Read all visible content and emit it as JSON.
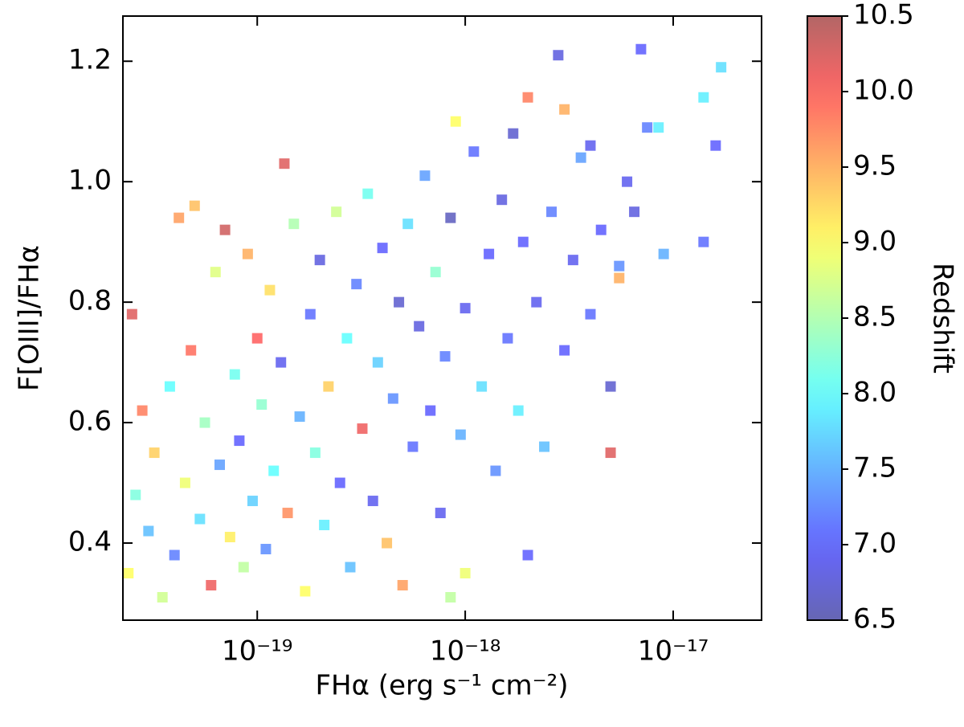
{
  "chart_data": {
    "type": "scatter",
    "x_label": "FHα (erg s⁻¹ cm⁻²)",
    "y_label": "F[OIII]/FHα",
    "colorbar_label": "Redshift",
    "xscale": "log",
    "xlim": [
      2.26e-20,
      2.66e-17
    ],
    "xticks": [
      {
        "value": 1e-19,
        "label": "10⁻¹⁹"
      },
      {
        "value": 1e-18,
        "label": "10⁻¹⁸"
      },
      {
        "value": 1e-17,
        "label": "10⁻¹⁷"
      }
    ],
    "ylim": [
      0.272,
      1.275
    ],
    "yticks": [
      0.4,
      0.6,
      0.8,
      {
        "value": 1,
        "label": "1.0"
      },
      1.2
    ],
    "colormap": "jet",
    "clim": [
      6.5,
      10.5
    ],
    "cticks": [
      6.5,
      {
        "value": 7,
        "label": "7.0"
      },
      7.5,
      {
        "value": 8,
        "label": "8.0"
      },
      8.5,
      {
        "value": 9,
        "label": "9.0"
      },
      9.5,
      {
        "value": 10,
        "label": "10.0"
      },
      10.5
    ],
    "x": [
      2.4e-20,
      2.6e-20,
      2.8e-20,
      3e-20,
      3.2e-20,
      3.5e-20,
      2.5e-20,
      3.8e-20,
      4e-20,
      4.2e-20,
      4.5e-20,
      4.8e-20,
      5e-20,
      5.3e-20,
      5.6e-20,
      6e-20,
      6.3e-20,
      6.6e-20,
      7e-20,
      7.4e-20,
      7.8e-20,
      8.2e-20,
      8.6e-20,
      9e-20,
      9.5e-20,
      1e-19,
      1.05e-19,
      1.1e-19,
      1.15e-19,
      1.2e-19,
      1.3e-19,
      1.35e-19,
      1.4e-19,
      1.5e-19,
      1.6e-19,
      1.7e-19,
      1.8e-19,
      1.9e-19,
      2e-19,
      2.1e-19,
      2.2e-19,
      2.4e-19,
      2.5e-19,
      2.7e-19,
      2.8e-19,
      3e-19,
      3.2e-19,
      3.4e-19,
      3.6e-19,
      3.8e-19,
      4e-19,
      4.2e-19,
      4.5e-19,
      4.8e-19,
      5e-19,
      5.3e-19,
      5.6e-19,
      6e-19,
      6.4e-19,
      6.8e-19,
      7.2e-19,
      7.6e-19,
      8e-19,
      8.5e-19,
      9e-19,
      9.5e-19,
      1e-18,
      1.1e-18,
      1.2e-18,
      1.3e-18,
      1.4e-18,
      1.5e-18,
      1.6e-18,
      1.7e-18,
      1.8e-18,
      1.9e-18,
      2e-18,
      2.2e-18,
      2.4e-18,
      2.6e-18,
      2.8e-18,
      3e-18,
      3e-18,
      3.3e-18,
      3.6e-18,
      4e-18,
      4e-18,
      4.5e-18,
      5e-18,
      5e-18,
      5.5e-18,
      6e-18,
      6.5e-18,
      7e-18,
      7.5e-18,
      8.5e-18,
      9e-18,
      1.4e-17,
      1.4e-17,
      1.6e-17,
      1.7e-17,
      5.5e-18,
      1e-18,
      8.5e-19,
      2e-18
    ],
    "y": [
      0.35,
      0.48,
      0.62,
      0.42,
      0.55,
      0.31,
      0.78,
      0.66,
      0.38,
      0.94,
      0.5,
      0.72,
      0.96,
      0.44,
      0.6,
      0.33,
      0.85,
      0.53,
      0.92,
      0.41,
      0.68,
      0.57,
      0.36,
      0.88,
      0.47,
      0.74,
      0.63,
      0.39,
      0.82,
      0.52,
      0.7,
      1.03,
      0.45,
      0.93,
      0.61,
      0.32,
      0.78,
      0.55,
      0.87,
      0.43,
      0.66,
      0.95,
      0.5,
      0.74,
      0.36,
      0.83,
      0.59,
      0.98,
      0.47,
      0.7,
      0.89,
      0.4,
      0.64,
      0.8,
      0.33,
      0.93,
      0.56,
      0.76,
      1.01,
      0.62,
      0.85,
      0.45,
      0.71,
      0.94,
      1.1,
      0.58,
      0.79,
      1.05,
      0.66,
      0.88,
      0.52,
      0.97,
      0.74,
      1.08,
      0.62,
      0.9,
      1.14,
      0.8,
      0.56,
      0.95,
      1.21,
      0.72,
      1.12,
      0.87,
      1.04,
      0.78,
      1.06,
      0.92,
      0.55,
      0.66,
      0.86,
      1.0,
      0.95,
      1.22,
      1.09,
      1.09,
      0.88,
      0.9,
      1.14,
      1.06,
      1.19,
      0.84,
      0.35,
      0.31,
      0.38
    ],
    "z": [
      9.0,
      8.2,
      9.8,
      7.6,
      9.3,
      8.7,
      10.2,
      8.0,
      7.2,
      9.6,
      8.9,
      9.9,
      9.4,
      7.8,
      8.4,
      10.1,
      8.8,
      7.4,
      10.3,
      9.1,
      8.1,
      7.0,
      8.6,
      9.5,
      7.7,
      10.0,
      8.3,
      7.3,
      9.2,
      8.0,
      6.9,
      10.2,
      9.7,
      8.5,
      7.5,
      9.0,
      7.1,
      8.2,
      6.8,
      7.9,
      9.3,
      8.7,
      7.0,
      8.0,
      7.6,
      7.2,
      10.1,
      8.1,
      6.9,
      7.7,
      7.0,
      9.4,
      7.3,
      6.7,
      9.6,
      7.8,
      7.1,
      6.8,
      7.4,
      7.0,
      8.3,
      6.9,
      7.2,
      6.6,
      9.0,
      7.5,
      6.9,
      7.1,
      7.8,
      7.0,
      7.3,
      6.8,
      7.1,
      6.7,
      7.9,
      7.0,
      9.8,
      6.9,
      7.6,
      7.2,
      6.8,
      7.0,
      9.5,
      6.9,
      7.4,
      7.1,
      6.9,
      7.0,
      10.2,
      6.7,
      7.3,
      6.9,
      6.8,
      7.0,
      7.2,
      7.9,
      7.5,
      7.1,
      7.9,
      7.0,
      7.8,
      9.5,
      8.9,
      8.6,
      7.0
    ]
  }
}
